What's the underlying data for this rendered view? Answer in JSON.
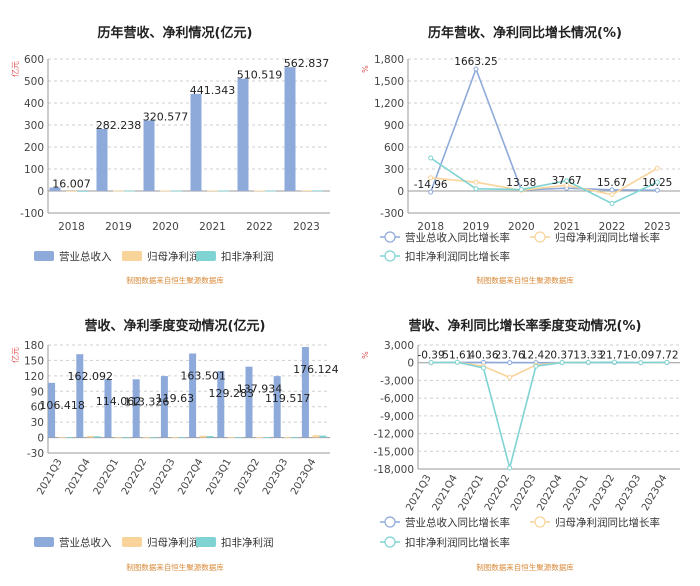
{
  "colors": {
    "revenue": "#8eaadb",
    "netprofit": "#f9d49a",
    "deducted": "#7fd3d3",
    "grid": "#cfcfcf",
    "axis": "#444444",
    "source": "#d98a3a",
    "unit": "#e05050"
  },
  "source_note": "制图数据来自恒生聚源数据库",
  "chart_data": [
    {
      "type": "bar",
      "title": "历年营收、净利情况(亿元)",
      "unit_label": "亿元",
      "categories": [
        "2018",
        "2019",
        "2020",
        "2021",
        "2022",
        "2023"
      ],
      "ylim": [
        -100,
        600
      ],
      "yticks": [
        -100,
        0,
        100,
        200,
        300,
        400,
        500,
        600
      ],
      "series": [
        {
          "name": "营业总收入",
          "values": [
            16.007,
            282.238,
            320.577,
            441.343,
            510.519,
            562.837
          ]
        },
        {
          "name": "归母净利润",
          "values": [
            0.3,
            2.0,
            2.2,
            2.5,
            2.3,
            2.9
          ]
        },
        {
          "name": "扣非净利润",
          "values": [
            0.2,
            1.6,
            1.7,
            2.1,
            1.8,
            2.5
          ]
        }
      ],
      "labels": [
        "16.007",
        "282.238",
        "320.577",
        "441.343",
        "510.519",
        "562.837"
      ]
    },
    {
      "type": "line",
      "title": "历年营收、净利同比增长情况(%)",
      "unit_label": "%",
      "categories": [
        "2018",
        "2019",
        "2020",
        "2021",
        "2022",
        "2023"
      ],
      "ylim": [
        -300,
        1800
      ],
      "yticks": [
        -300,
        0,
        300,
        600,
        900,
        1200,
        1500,
        1800
      ],
      "series": [
        {
          "name": "营业总收入同比增长率",
          "values": [
            -14.96,
            1663.25,
            13.58,
            37.67,
            15.67,
            10.25
          ]
        },
        {
          "name": "归母净利润同比增长率",
          "values": [
            180,
            120,
            10,
            80,
            -50,
            310
          ]
        },
        {
          "name": "扣非净利润同比增长率",
          "values": [
            450,
            30,
            20,
            140,
            -170,
            120
          ]
        }
      ],
      "labels": [
        "-14.96",
        "1663.25",
        "13.58",
        "37.67",
        "15.67",
        "10.25"
      ]
    },
    {
      "type": "bar",
      "title": "营收、净利季度变动情况(亿元)",
      "unit_label": "亿元",
      "categories": [
        "2021Q3",
        "2021Q4",
        "2022Q1",
        "2022Q2",
        "2022Q3",
        "2022Q4",
        "2023Q1",
        "2023Q2",
        "2023Q3",
        "2023Q4"
      ],
      "ylim": [
        -30,
        180
      ],
      "yticks": [
        -30,
        0,
        30,
        60,
        90,
        120,
        150,
        180
      ],
      "series": [
        {
          "name": "营业总收入",
          "values": [
            106.418,
            162.092,
            114.062,
            113.326,
            119.63,
            163.501,
            129.283,
            137.934,
            119.517,
            176.124
          ]
        },
        {
          "name": "归母净利润",
          "values": [
            0.8,
            3.0,
            0.5,
            0.4,
            0.6,
            3.5,
            0.7,
            0.8,
            0.6,
            4.5
          ]
        },
        {
          "name": "扣非净利润",
          "values": [
            0.6,
            2.5,
            0.4,
            0.3,
            0.5,
            3.0,
            0.6,
            0.7,
            0.5,
            3.8
          ]
        }
      ],
      "labels": [
        "106.418",
        "162.092",
        "114.062",
        "113.326",
        "119.63",
        "163.501",
        "129.283",
        "137.934",
        "119.517",
        "176.124"
      ]
    },
    {
      "type": "line",
      "title": "营收、净利同比增长率季度变动情况(%)",
      "unit_label": "%",
      "categories": [
        "2021Q3",
        "2021Q4",
        "2022Q1",
        "2022Q2",
        "2022Q3",
        "2022Q4",
        "2023Q1",
        "2023Q2",
        "2023Q3",
        "2023Q4"
      ],
      "ylim": [
        -18000,
        3000
      ],
      "yticks": [
        -18000,
        -15000,
        -12000,
        -9000,
        -6000,
        -3000,
        0,
        3000
      ],
      "series": [
        {
          "name": "营业总收入同比增长率",
          "values": [
            -0.39,
            51.61,
            40.36,
            23.76,
            12.42,
            0.37,
            13.33,
            21.71,
            -0.09,
            7.72
          ]
        },
        {
          "name": "归母净利润同比增长率",
          "values": [
            20,
            60,
            -600,
            -2500,
            -400,
            40,
            60,
            80,
            10,
            50
          ]
        },
        {
          "name": "扣非净利润同比增长率",
          "values": [
            30,
            80,
            -900,
            -17800,
            -600,
            30,
            50,
            90,
            20,
            60
          ]
        }
      ],
      "labels": [
        "-0.39",
        "51.61",
        "40.36",
        "23.76",
        "12.42",
        "0.37",
        "13.33",
        "21.71",
        "-0.09",
        "7.72"
      ]
    }
  ]
}
